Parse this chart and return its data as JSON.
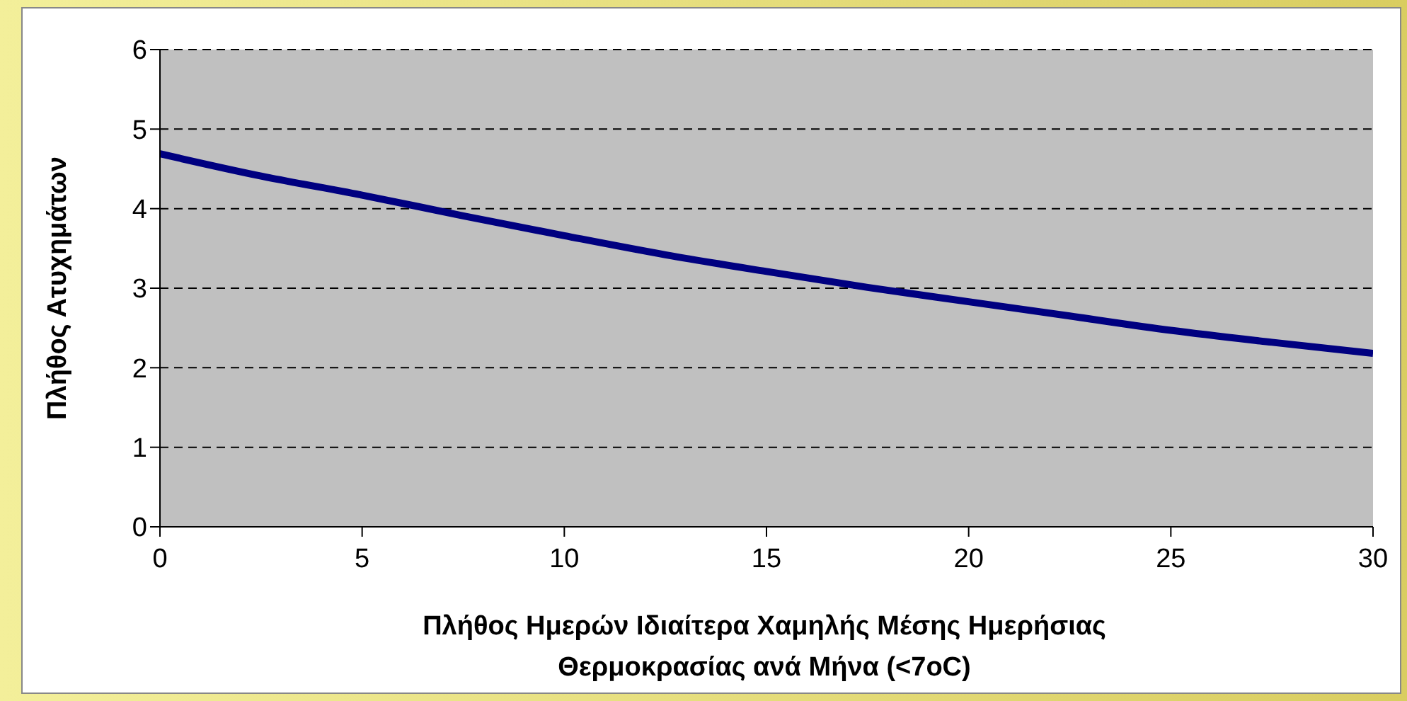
{
  "chart_data": {
    "type": "line",
    "xlabel": "Πλήθος Ημερών Ιδιαίτερα Χαμηλής Μέσης Ημερήσιας Θερμοκρασίας ανά Μήνα (<7oC)",
    "ylabel": "Πλήθος Ατυχημάτων",
    "x": [
      0,
      2.5,
      5,
      7.5,
      10,
      12.5,
      15,
      17.5,
      20,
      22.5,
      25,
      27.5,
      30
    ],
    "series": [
      {
        "color": "#000080",
        "values": [
          4.69,
          4.41,
          4.17,
          3.91,
          3.66,
          3.42,
          3.21,
          3.01,
          2.83,
          2.65,
          2.47,
          2.32,
          2.18
        ]
      }
    ],
    "xlim": [
      0,
      30
    ],
    "xticks": [
      0,
      5,
      10,
      15,
      20,
      25,
      30
    ],
    "ylim": [
      0,
      6
    ],
    "yticks": [
      0,
      1,
      2,
      3,
      4,
      5,
      6
    ],
    "grid": "y",
    "legend": false,
    "marker": "none",
    "line_style": "solid"
  }
}
